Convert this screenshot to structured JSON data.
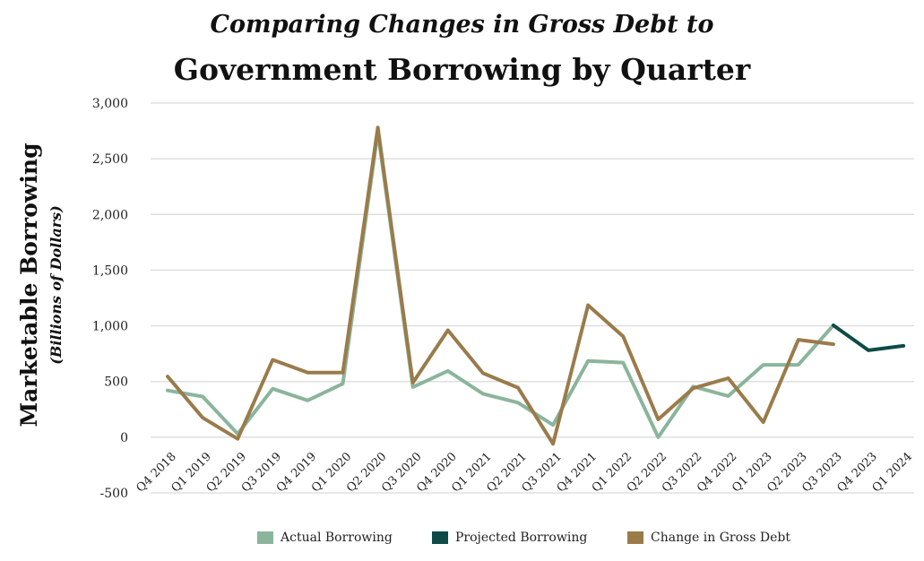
{
  "chart_data": {
    "type": "line",
    "title": "Government Borrowing by Quarter",
    "subtitle": "Comparing Changes in Gross Debt to",
    "ylabel": "Marketable Borrowing",
    "ylabel_sub": "(Billions of Dollars)",
    "xlabel": "",
    "ylim": [
      -500,
      3000
    ],
    "yticks": [
      -500,
      0,
      500,
      1000,
      1500,
      2000,
      2500,
      3000
    ],
    "ytick_labels": [
      "-500",
      "0",
      "500",
      "1,000",
      "1,500",
      "2,000",
      "2,500",
      "3,000"
    ],
    "grid": true,
    "legend_position": "bottom",
    "categories": [
      "Q4 2018",
      "Q1 2019",
      "Q2 2019",
      "Q3 2019",
      "Q4 2019",
      "Q1 2020",
      "Q2 2020",
      "Q3 2020",
      "Q4 2020",
      "Q1 2021",
      "Q2 2021",
      "Q3 2021",
      "Q4 2021",
      "Q1 2022",
      "Q2 2022",
      "Q3 2022",
      "Q4 2022",
      "Q1 2023",
      "Q2 2023",
      "Q3 2023",
      "Q4 2023",
      "Q1 2024"
    ],
    "series": [
      {
        "name": "Actual Borrowing",
        "color": "#8ab59c",
        "values": [
          420,
          365,
          30,
          435,
          330,
          480,
          2740,
          450,
          595,
          390,
          310,
          110,
          685,
          670,
          0,
          455,
          370,
          650,
          650,
          1005,
          null,
          null
        ]
      },
      {
        "name": "Projected Borrowing",
        "color": "#0e4b47",
        "values": [
          null,
          null,
          null,
          null,
          null,
          null,
          null,
          null,
          null,
          null,
          null,
          null,
          null,
          null,
          null,
          null,
          null,
          null,
          null,
          1005,
          780,
          820
        ]
      },
      {
        "name": "Change in Gross Debt",
        "color": "#9a7b4a",
        "values": [
          545,
          175,
          -15,
          695,
          580,
          580,
          2780,
          490,
          960,
          575,
          445,
          -60,
          1185,
          905,
          160,
          440,
          530,
          135,
          875,
          835,
          null,
          null
        ]
      }
    ]
  }
}
